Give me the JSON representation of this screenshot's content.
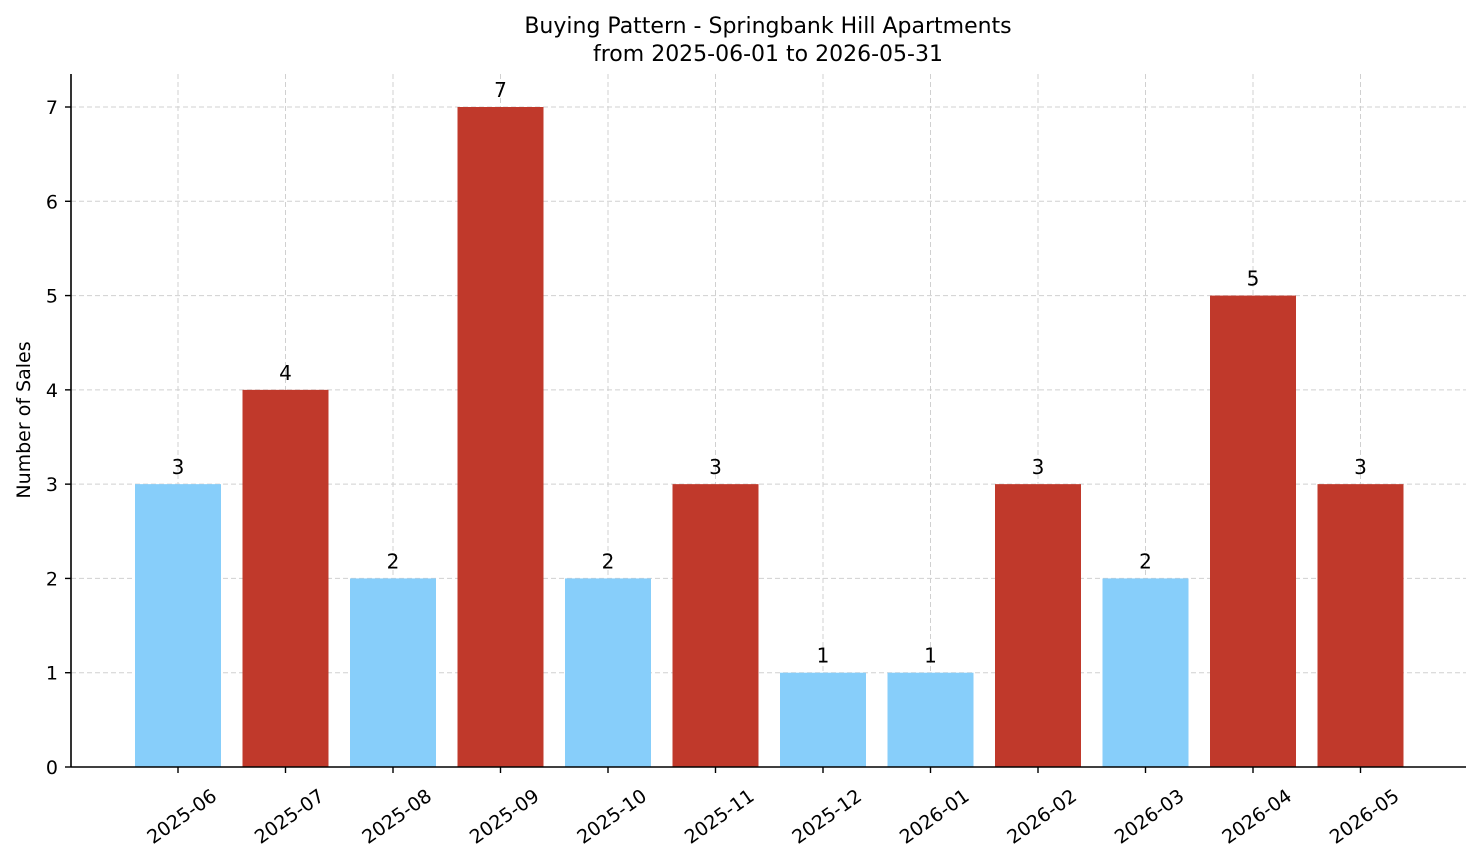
{
  "chart_data": {
    "type": "bar",
    "title": "Buying Pattern - Springbank Hill Apartments",
    "subtitle": "from 2025-06-01 to 2026-05-31",
    "xlabel": "",
    "ylabel": "Number of Sales",
    "ylim": [
      0,
      7.35
    ],
    "yticks": [
      0,
      1,
      2,
      3,
      4,
      5,
      6,
      7
    ],
    "grid": true,
    "categories": [
      "2025-06",
      "2025-07",
      "2025-08",
      "2025-09",
      "2025-10",
      "2025-11",
      "2025-12",
      "2026-01",
      "2026-02",
      "2026-03",
      "2026-04",
      "2026-05"
    ],
    "values": [
      3,
      4,
      2,
      7,
      2,
      3,
      1,
      1,
      3,
      2,
      5,
      3
    ],
    "bar_colors": [
      "#87CEFA",
      "#C0392B",
      "#87CEFA",
      "#C0392B",
      "#87CEFA",
      "#C0392B",
      "#87CEFA",
      "#87CEFA",
      "#C0392B",
      "#87CEFA",
      "#C0392B",
      "#C0392B"
    ],
    "data_labels": [
      "3",
      "4",
      "2",
      "7",
      "2",
      "3",
      "1",
      "1",
      "3",
      "2",
      "5",
      "3"
    ]
  }
}
